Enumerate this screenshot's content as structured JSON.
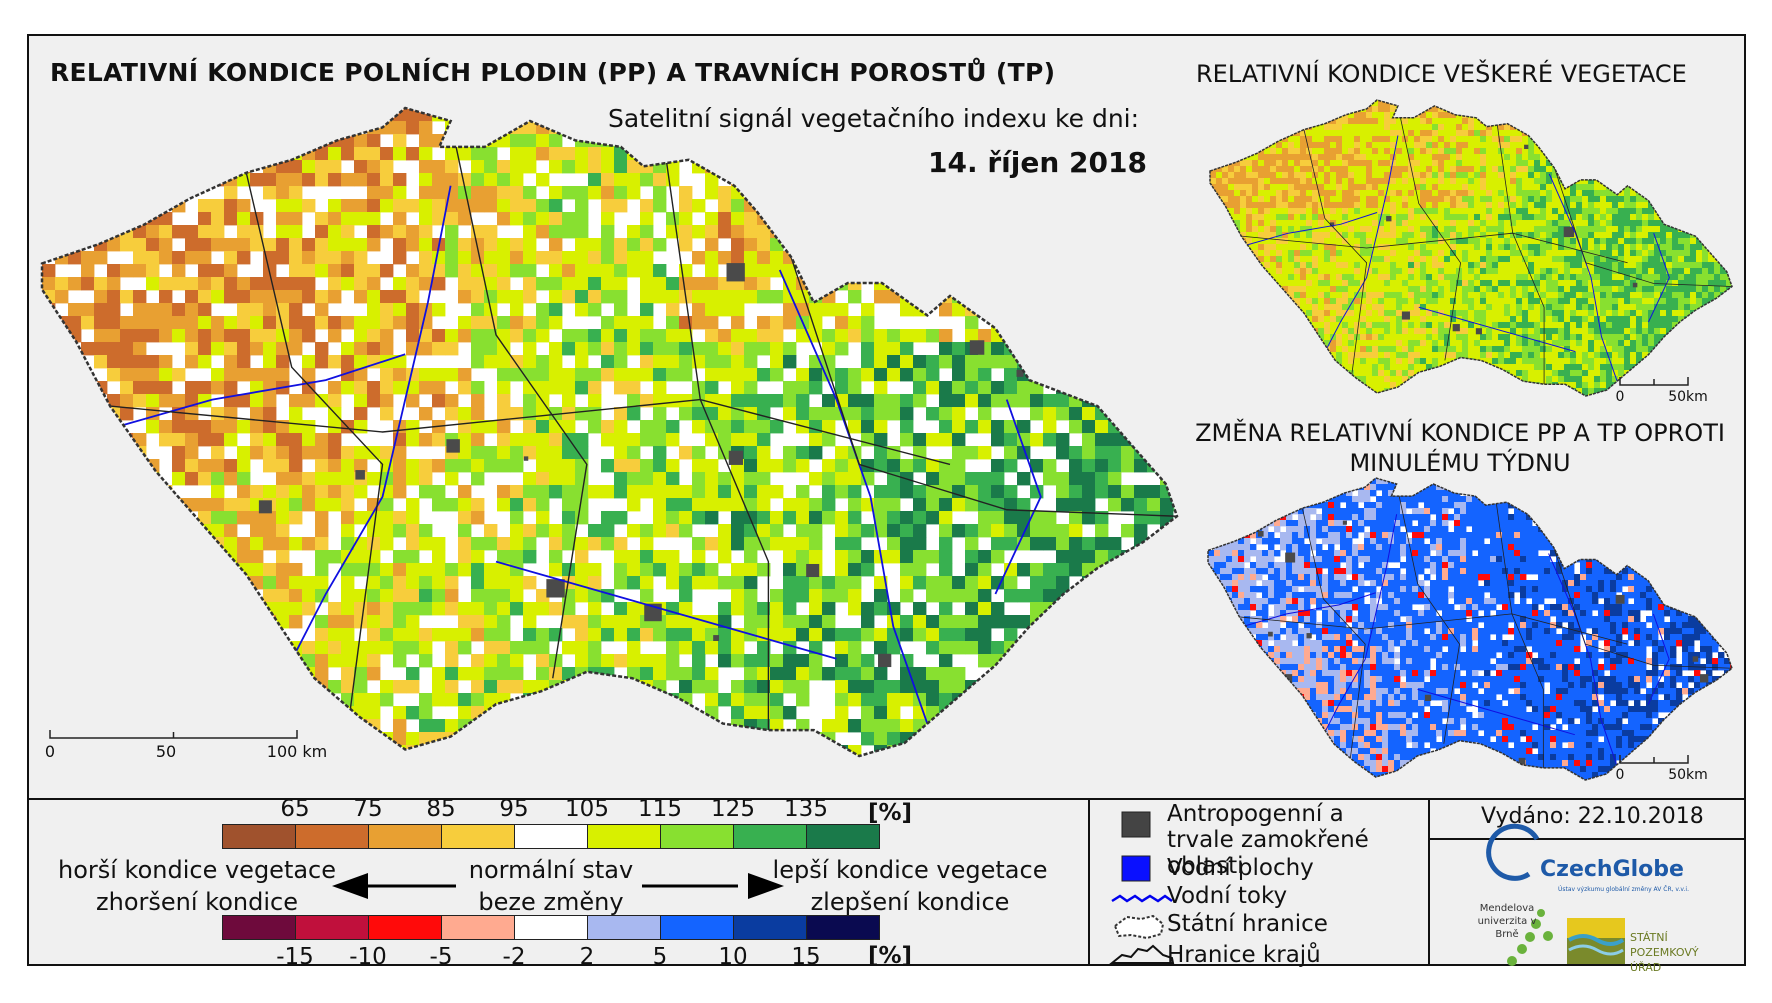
{
  "titles": {
    "main": "RELATIVNÍ KONDICE POLNÍCH PLODIN (PP) A TRAVNÍCH POROSTŮ (TP)",
    "subtitle": "Satelitní signál vegetačního indexu ke dni:",
    "date": "14. říjen 2018",
    "vegetation": "RELATIVNÍ KONDICE VEŠKERÉ VEGETACE",
    "change": "ZMĚNA RELATIVNÍ KONDICE PP A TP OPROTI MINULÉMU TÝDNU"
  },
  "scalebars": {
    "main": [
      "0",
      "50",
      "100 km"
    ],
    "small": [
      "0",
      "50km"
    ]
  },
  "condition_scale": {
    "ticks": [
      "65",
      "75",
      "85",
      "95",
      "105",
      "115",
      "125",
      "135"
    ],
    "unit": "[%]",
    "colors": [
      "#a0522d",
      "#cd6c2c",
      "#e8a032",
      "#f7cd3c",
      "#ffffff",
      "#d8f000",
      "#88e030",
      "#38b050",
      "#1a7a4a"
    ]
  },
  "change_scale": {
    "ticks": [
      "-15",
      "-10",
      "-5",
      "-2",
      "2",
      "5",
      "10",
      "15"
    ],
    "unit": "[%]",
    "colors": [
      "#6e0a3c",
      "#c0103c",
      "#ff0a0a",
      "#ffaa90",
      "#ffffff",
      "#a8b8f0",
      "#1464ff",
      "#0a3ca0",
      "#0a0a50"
    ]
  },
  "legend_labels": {
    "worse_veg": "horší kondice vegetace",
    "worse_change": "zhoršení kondice",
    "normal": "normální stav",
    "no_change": "beze změny",
    "better_veg": "lepší kondice vegetace",
    "better_change": "zlepšení kondice"
  },
  "key": [
    {
      "icon": "anthropogenic-swatch",
      "label": "Antropogenní a trvale zamokřené oblasti",
      "color": "#444444"
    },
    {
      "icon": "water-swatch",
      "label": "Vodní plochy",
      "color": "#0a10ff"
    },
    {
      "icon": "river-line-icon",
      "label": "Vodní toky",
      "color": "#0000ee"
    },
    {
      "icon": "state-border-icon",
      "label": "Státní hranice",
      "color": "#333333"
    },
    {
      "icon": "region-border-icon",
      "label": "Hranice krajů",
      "color": "#111111"
    }
  ],
  "issued": "Vydáno: 22.10.2018",
  "logos": {
    "czechglobe": "CzechGlobe",
    "czechglobe_sub": "Ústav výzkumu globální změny AV ČR, v.v.i.",
    "mendel": "Mendelova univerzita v Brně",
    "spu": "STÁTNÍ POZEMKOVÝ ÚŘAD"
  }
}
